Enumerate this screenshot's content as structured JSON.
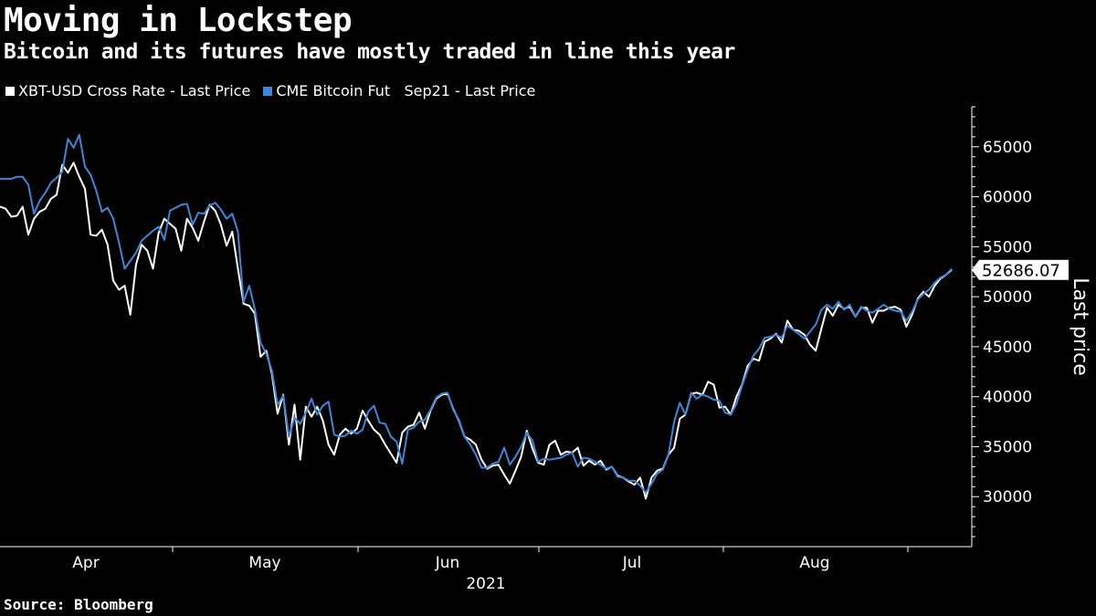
{
  "title": "Moving in Lockstep",
  "subtitle": "Bitcoin and its futures have mostly traded in line this year",
  "source": "Source: Bloomberg",
  "chart_data": {
    "type": "line",
    "ylabel": "Last price",
    "ylim": [
      25000,
      69000
    ],
    "yticks": [
      30000,
      35000,
      40000,
      45000,
      50000,
      55000,
      60000,
      65000
    ],
    "ytick_labels": [
      "30000",
      "35000",
      "40000",
      "45000",
      "50000",
      "55000",
      "60000",
      "65000"
    ],
    "x_month_labels": [
      "Apr",
      "May",
      "Jun",
      "Jul",
      "Aug"
    ],
    "x_year_label": "2021",
    "last_value_label": "52686.07",
    "grid": false,
    "legend_position": "top-left",
    "series": [
      {
        "name": "XBT-USD Cross Rate - Last Price",
        "color": "#ffffff",
        "values": [
          59000,
          58800,
          58000,
          58100,
          59000,
          56200,
          57800,
          58500,
          58800,
          59800,
          60200,
          63200,
          62400,
          63400,
          62000,
          60800,
          56200,
          56100,
          56700,
          55200,
          51600,
          50700,
          51100,
          48200,
          53200,
          55200,
          54600,
          52800,
          56400,
          57800,
          57300,
          56800,
          54600,
          57800,
          56900,
          55600,
          57500,
          59200,
          58600,
          57200,
          55100,
          56500,
          52800,
          49300,
          49100,
          48300,
          44000,
          44600,
          42300,
          38300,
          40200,
          35200,
          39200,
          33700,
          39000,
          38000,
          39000,
          37600,
          35200,
          34200,
          36200,
          36800,
          36300,
          36800,
          38600,
          37600,
          36700,
          36200,
          35200,
          34300,
          33400,
          36400,
          37000,
          37200,
          38400,
          36800,
          38600,
          39800,
          40200,
          40300,
          38800,
          37600,
          36000,
          35700,
          35200,
          33700,
          32800,
          33100,
          33200,
          32200,
          31300,
          32600,
          34000,
          36600,
          34800,
          33400,
          33200,
          35200,
          35600,
          34200,
          34500,
          34400,
          34900,
          33100,
          33600,
          33200,
          33600,
          32700,
          33000,
          32100,
          31900,
          31500,
          31200,
          31900,
          29800,
          31900,
          32600,
          32800,
          34200,
          34900,
          37800,
          38200,
          40300,
          40400,
          40200,
          41500,
          41200,
          38900,
          39000,
          38200,
          40000,
          41200,
          43100,
          43800,
          43600,
          45500,
          45800,
          46300,
          45400,
          47600,
          46700,
          46600,
          46200,
          45200,
          44600,
          46800,
          48900,
          48100,
          49200,
          48800,
          49000,
          48000,
          48900,
          48900,
          47400,
          48600,
          48600,
          48900,
          49000,
          48700,
          47000,
          48200,
          49800,
          50500,
          50000,
          51100,
          51800,
          52200,
          52686
        ]
      },
      {
        "name": "CME Bitcoin Fut   Sep21 - Last Price",
        "color": "#3d86d8",
        "values": [
          61800,
          61800,
          61800,
          62000,
          62000,
          61200,
          58300,
          59600,
          60400,
          61400,
          61900,
          62500,
          65800,
          64900,
          66200,
          63000,
          62200,
          60600,
          58500,
          58900,
          57800,
          55400,
          52800,
          53600,
          54400,
          55600,
          56100,
          56600,
          57000,
          55700,
          58600,
          58900,
          59200,
          59300,
          57200,
          58400,
          58300,
          59100,
          59400,
          58700,
          57800,
          58300,
          56500,
          49500,
          51100,
          48700,
          45400,
          44300,
          42600,
          39200,
          40100,
          36000,
          37900,
          37300,
          38400,
          39800,
          38200,
          39100,
          39500,
          36200,
          36000,
          36100,
          36600,
          36300,
          36700,
          38500,
          39100,
          37400,
          37300,
          36000,
          35500,
          33300,
          36700,
          36900,
          37500,
          37700,
          38700,
          39900,
          40300,
          40400,
          38700,
          37700,
          36000,
          35200,
          34200,
          32900,
          32900,
          33300,
          33500,
          34900,
          33200,
          34000,
          35000,
          36400,
          35600,
          33500,
          33800,
          33700,
          33800,
          33900,
          34200,
          34400,
          33000,
          33900,
          33800,
          33500,
          33200,
          32800,
          33000,
          32000,
          31900,
          31600,
          31600,
          31100,
          30400,
          31300,
          32300,
          32700,
          34200,
          37500,
          39400,
          38200,
          40400,
          39800,
          40200,
          40000,
          39700,
          39600,
          38400,
          38200,
          39300,
          41100,
          42700,
          44100,
          44800,
          45900,
          46000,
          46200,
          45900,
          47100,
          46700,
          46300,
          45800,
          46500,
          47200,
          48700,
          49200,
          48800,
          49500,
          48700,
          49200,
          48000,
          49000,
          48600,
          48400,
          48800,
          49200,
          48800,
          48600,
          48500,
          47600,
          48500,
          49700,
          50300,
          50700,
          51400,
          51900,
          52200,
          52800
        ]
      }
    ]
  }
}
